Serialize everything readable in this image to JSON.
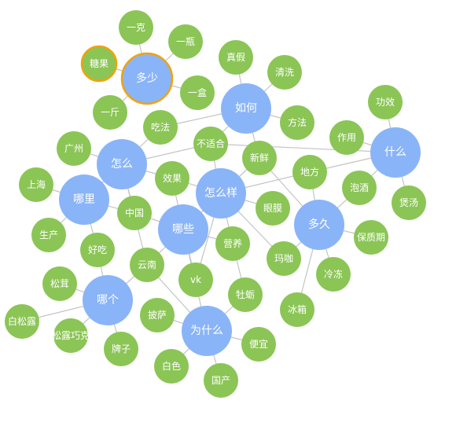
{
  "colors": {
    "hub": "#8ab4f8",
    "leaf": "#8bc556",
    "edge": "#c4c4c4",
    "highlight": "#f0a30a",
    "label": "#ffffff"
  },
  "hubs": [
    {
      "id": "duoshao",
      "label": "多少",
      "highlight": true
    },
    {
      "id": "ruhe",
      "label": "如何"
    },
    {
      "id": "shenme",
      "label": "什么"
    },
    {
      "id": "zenme",
      "label": "怎么"
    },
    {
      "id": "nali",
      "label": "哪里"
    },
    {
      "id": "zenmeyang",
      "label": "怎么样"
    },
    {
      "id": "naxie",
      "label": "哪些"
    },
    {
      "id": "duojiu",
      "label": "多久"
    },
    {
      "id": "nage",
      "label": "哪个"
    },
    {
      "id": "weishenme",
      "label": "为什么"
    }
  ],
  "leaves": [
    {
      "id": "yike",
      "label": "一克"
    },
    {
      "id": "yiping",
      "label": "一瓶"
    },
    {
      "id": "tangguo",
      "label": "糖果",
      "highlight": true
    },
    {
      "id": "yihe",
      "label": "一盒"
    },
    {
      "id": "yijin",
      "label": "一斤"
    },
    {
      "id": "zhenjia",
      "label": "真假"
    },
    {
      "id": "qingxi",
      "label": "清洗"
    },
    {
      "id": "fangfa",
      "label": "方法"
    },
    {
      "id": "chifa",
      "label": "吃法"
    },
    {
      "id": "gongxiao",
      "label": "功效"
    },
    {
      "id": "zuoyong",
      "label": "作用"
    },
    {
      "id": "buheshi",
      "label": "不适合"
    },
    {
      "id": "guangzhou",
      "label": "广州"
    },
    {
      "id": "xinxian",
      "label": "新鲜"
    },
    {
      "id": "difang",
      "label": "地方"
    },
    {
      "id": "paojiu",
      "label": "泡酒"
    },
    {
      "id": "baotang",
      "label": "煲汤"
    },
    {
      "id": "shanghai",
      "label": "上海"
    },
    {
      "id": "xiaoguo",
      "label": "效果"
    },
    {
      "id": "zhongguo",
      "label": "中国"
    },
    {
      "id": "yanmo",
      "label": "眼膜"
    },
    {
      "id": "baozhiqi",
      "label": "保质期"
    },
    {
      "id": "shengchan",
      "label": "生产"
    },
    {
      "id": "haochi",
      "label": "好吃"
    },
    {
      "id": "yingyang",
      "label": "营养"
    },
    {
      "id": "makai",
      "label": "玛咖"
    },
    {
      "id": "lengdong",
      "label": "冷冻"
    },
    {
      "id": "yunnan",
      "label": "云南"
    },
    {
      "id": "songrong",
      "label": "松茸"
    },
    {
      "id": "vk",
      "label": "vk"
    },
    {
      "id": "muli",
      "label": "牡蛎"
    },
    {
      "id": "bingxiang",
      "label": "冰箱"
    },
    {
      "id": "baisonglu",
      "label": "白松露"
    },
    {
      "id": "peisa",
      "label": "披萨"
    },
    {
      "id": "songluqiaoke",
      "label": "松露巧克"
    },
    {
      "id": "pianyi",
      "label": "便宜"
    },
    {
      "id": "paizi",
      "label": "牌子"
    },
    {
      "id": "baise",
      "label": "白色"
    },
    {
      "id": "guochan",
      "label": "国产"
    }
  ],
  "edges": [
    [
      "duoshao",
      "yike"
    ],
    [
      "duoshao",
      "yiping"
    ],
    [
      "duoshao",
      "tangguo"
    ],
    [
      "duoshao",
      "yihe"
    ],
    [
      "duoshao",
      "yijin"
    ],
    [
      "ruhe",
      "zhenjia"
    ],
    [
      "ruhe",
      "qingxi"
    ],
    [
      "ruhe",
      "fangfa"
    ],
    [
      "ruhe",
      "chifa"
    ],
    [
      "ruhe",
      "buheshi"
    ],
    [
      "ruhe",
      "xinxian"
    ],
    [
      "shenme",
      "gongxiao"
    ],
    [
      "shenme",
      "zuoyong"
    ],
    [
      "shenme",
      "paojiu"
    ],
    [
      "shenme",
      "baotang"
    ],
    [
      "shenme",
      "difang"
    ],
    [
      "zenme",
      "guangzhou"
    ],
    [
      "zenme",
      "chifa"
    ],
    [
      "zenme",
      "buheshi"
    ],
    [
      "zenme",
      "xiaoguo"
    ],
    [
      "zenme",
      "zhongguo"
    ],
    [
      "zenme",
      "nali"
    ],
    [
      "zenme",
      "yunnan"
    ],
    [
      "nali",
      "shanghai"
    ],
    [
      "nali",
      "shengchan"
    ],
    [
      "nali",
      "haochi"
    ],
    [
      "nali",
      "zhongguo"
    ],
    [
      "zenmeyang",
      "buheshi"
    ],
    [
      "zenmeyang",
      "xinxian"
    ],
    [
      "zenmeyang",
      "xiaoguo"
    ],
    [
      "zenmeyang",
      "yanmo"
    ],
    [
      "zenmeyang",
      "yingyang"
    ],
    [
      "zenmeyang",
      "makai"
    ],
    [
      "zenmeyang",
      "naxie"
    ],
    [
      "zenmeyang",
      "vk"
    ],
    [
      "zenmeyang",
      "difang"
    ],
    [
      "naxie",
      "zhongguo"
    ],
    [
      "naxie",
      "yunnan"
    ],
    [
      "naxie",
      "yingyang"
    ],
    [
      "naxie",
      "vk"
    ],
    [
      "naxie",
      "weishenme"
    ],
    [
      "naxie",
      "xiaoguo"
    ],
    [
      "duojiu",
      "difang"
    ],
    [
      "duojiu",
      "paojiu"
    ],
    [
      "duojiu",
      "baozhiqi"
    ],
    [
      "duojiu",
      "lengdong"
    ],
    [
      "duojiu",
      "bingxiang"
    ],
    [
      "duojiu",
      "xinxian"
    ],
    [
      "duojiu",
      "makai"
    ],
    [
      "nage",
      "songrong"
    ],
    [
      "nage",
      "baisonglu"
    ],
    [
      "nage",
      "songluqiaoke"
    ],
    [
      "nage",
      "paizi"
    ],
    [
      "nage",
      "haochi"
    ],
    [
      "nage",
      "yunnan"
    ],
    [
      "weishenme",
      "peisa"
    ],
    [
      "weishenme",
      "pianyi"
    ],
    [
      "weishenme",
      "baise"
    ],
    [
      "weishenme",
      "guochan"
    ],
    [
      "weishenme",
      "yunnan"
    ],
    [
      "weishenme",
      "muli"
    ],
    [
      "yingyang",
      "muli"
    ],
    [
      "buheshi",
      "shenme"
    ]
  ]
}
